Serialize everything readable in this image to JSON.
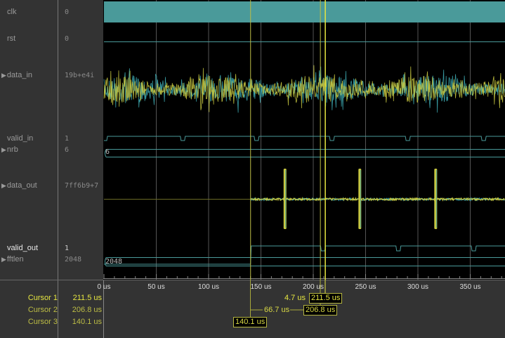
{
  "signals": [
    {
      "name": "clk",
      "value": "0",
      "expandable": false,
      "highlight": false
    },
    {
      "name": "rst",
      "value": "0",
      "expandable": false,
      "highlight": false
    },
    {
      "name": "data_in",
      "value": "19b+e4i",
      "expandable": true,
      "highlight": false
    },
    {
      "name": "valid_in",
      "value": "1",
      "expandable": false,
      "highlight": false
    },
    {
      "name": "nrb",
      "value": "6",
      "expandable": true,
      "highlight": false
    },
    {
      "name": "data_out",
      "value": "7ff6b9+7",
      "expandable": true,
      "highlight": false
    },
    {
      "name": "valid_out",
      "value": "1",
      "expandable": false,
      "highlight": true
    },
    {
      "name": "fftlen",
      "value": "2048",
      "expandable": true,
      "highlight": false
    }
  ],
  "bus_labels": {
    "nrb": "6",
    "fftlen": "2048"
  },
  "axis": {
    "unit": "us",
    "ticks": [
      "0 us",
      "50 us",
      "100 us",
      "150 us",
      "200 us",
      "250 us",
      "300 us",
      "350 us"
    ],
    "tick_values": [
      0,
      50,
      100,
      150,
      200,
      250,
      300,
      350
    ]
  },
  "cursors": [
    {
      "name": "Cursor 1",
      "value": "211.5 us",
      "time": 211.5,
      "color": "#e6e640"
    },
    {
      "name": "Cursor 2",
      "value": "206.8 us",
      "time": 206.8,
      "color": "#bdbd45"
    },
    {
      "name": "Cursor 3",
      "value": "140.1 us",
      "time": 140.1,
      "color": "#bdbd45"
    }
  ],
  "deltas": {
    "c1_c2": "4.7 us",
    "c2_c3": "66.7 us"
  },
  "colors": {
    "teal": "#4a9a9a",
    "yellow": "#c8c840",
    "background": "#000000",
    "panel": "#333333"
  }
}
